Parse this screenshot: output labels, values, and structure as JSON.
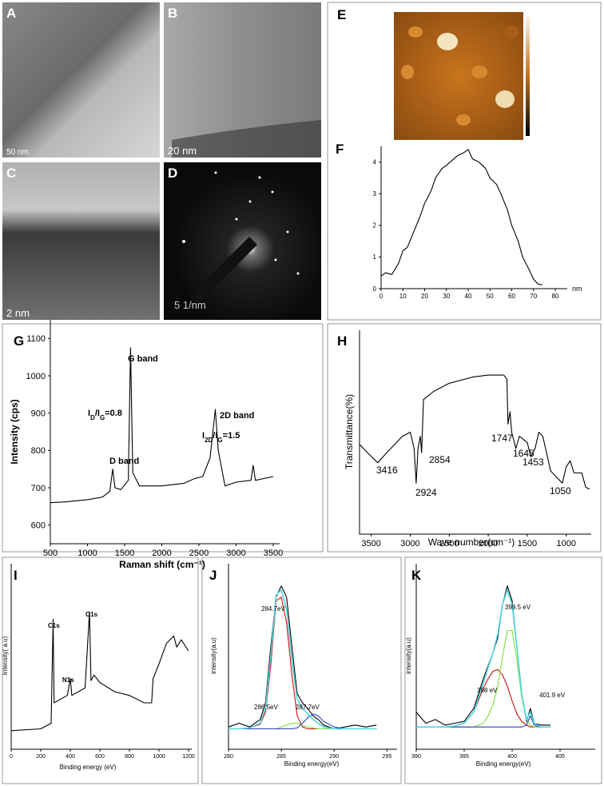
{
  "images": [
    {
      "label": "A",
      "scale": "50 nm"
    },
    {
      "label": "B",
      "scale": "20 nm"
    },
    {
      "label": "C",
      "scale": "2 nm"
    },
    {
      "label": "D",
      "scale": "5 1/nm"
    },
    {
      "label": "E"
    }
  ],
  "chart_data": [
    {
      "type": "line",
      "label": "F",
      "xlabel": "nm",
      "x": [
        0,
        2,
        5,
        8,
        10,
        12,
        15,
        18,
        20,
        23,
        25,
        28,
        30,
        35,
        38,
        40,
        42,
        45,
        48,
        50,
        53,
        55,
        58,
        60,
        63,
        65,
        68,
        70,
        72,
        74
      ],
      "series": [
        {
          "color": "#000000",
          "values": [
            0.4,
            0.5,
            0.45,
            0.8,
            1.2,
            1.3,
            1.8,
            2.3,
            2.7,
            3.1,
            3.5,
            3.8,
            3.9,
            4.2,
            4.3,
            4.4,
            4.1,
            4.0,
            3.8,
            3.5,
            3.3,
            3.0,
            2.5,
            2.0,
            1.5,
            1.0,
            0.6,
            0.3,
            0.15,
            0.12
          ]
        }
      ],
      "xlim": [
        0,
        80
      ],
      "xticks": [
        0,
        10,
        20,
        30,
        40,
        50,
        60,
        70,
        80
      ],
      "ylim": [
        0,
        4.5
      ],
      "yticks": [
        0,
        1,
        2,
        3,
        4
      ]
    },
    {
      "type": "line",
      "label": "G",
      "xlabel": "Raman shift (cm⁻¹)",
      "ylabel": "Intensity (cps)",
      "x": [
        500,
        700,
        1000,
        1200,
        1300,
        1340,
        1370,
        1450,
        1550,
        1580,
        1610,
        1700,
        2000,
        2300,
        2450,
        2550,
        2650,
        2720,
        2760,
        2850,
        3000,
        3200,
        3230,
        3260,
        3500
      ],
      "series": [
        {
          "color": "#000000",
          "values": [
            660,
            662,
            668,
            675,
            690,
            750,
            700,
            695,
            720,
            1075,
            740,
            705,
            705,
            712,
            725,
            730,
            780,
            910,
            800,
            705,
            715,
            720,
            760,
            720,
            730
          ]
        }
      ],
      "xlim": [
        500,
        3500
      ],
      "xticks": [
        500,
        1000,
        1500,
        2000,
        2500,
        3000,
        3500
      ],
      "ylim": [
        550,
        1150
      ],
      "yticks": [
        600,
        700,
        800,
        900,
        1000,
        1100
      ],
      "annotations": [
        {
          "text": [
            "D band"
          ]
        },
        {
          "text": [
            "I",
            "D",
            "/I",
            "G",
            "=0.8"
          ]
        },
        {
          "text": [
            "G band"
          ]
        },
        {
          "text": [
            "2D band"
          ]
        },
        {
          "text": [
            "I",
            "2D",
            "/I",
            "G",
            "=1.5"
          ]
        }
      ]
    },
    {
      "type": "line",
      "label": "H",
      "xlabel": "Wave number(cm⁻¹)",
      "ylabel": "Transmittance(%)",
      "x": [
        3650,
        3550,
        3416,
        3300,
        3100,
        3000,
        2950,
        2924,
        2900,
        2870,
        2854,
        2830,
        2700,
        2500,
        2200,
        2000,
        1800,
        1760,
        1747,
        1720,
        1700,
        1645,
        1600,
        1500,
        1453,
        1400,
        1350,
        1300,
        1200,
        1100,
        1050,
        1000,
        950,
        900,
        800,
        750,
        700
      ],
      "series": [
        {
          "color": "#000000",
          "values": [
            44,
            40,
            35,
            40,
            48,
            50,
            42,
            25,
            42,
            48,
            40,
            66,
            70,
            74,
            77,
            78,
            78,
            76,
            54,
            60,
            50,
            42,
            48,
            45,
            38,
            42,
            50,
            48,
            31,
            27,
            25,
            33,
            36,
            30,
            30,
            23,
            22
          ]
        }
      ],
      "xlim": [
        3650,
        700
      ],
      "xticks": [
        3500,
        3000,
        2500,
        2000,
        1500,
        1000
      ],
      "ylim": [
        0,
        100
      ],
      "annotations": [
        {
          "text": [
            "3416"
          ]
        },
        {
          "text": [
            "2924"
          ]
        },
        {
          "text": [
            "2854"
          ]
        },
        {
          "text": [
            "1747"
          ]
        },
        {
          "text": [
            "1645"
          ]
        },
        {
          "text": [
            "1453"
          ]
        },
        {
          "text": [
            "1050"
          ]
        }
      ]
    },
    {
      "type": "line",
      "label": "I",
      "xlabel": "Binding energy (eV)",
      "ylabel": "Intensity( a.u)",
      "x": [
        0,
        200,
        270,
        284,
        290,
        380,
        400,
        410,
        500,
        530,
        540,
        560,
        600,
        700,
        800,
        900,
        950,
        960,
        1000,
        1050,
        1100,
        1120,
        1150,
        1200
      ],
      "series": [
        {
          "color": "#000000",
          "values": [
            10,
            11,
            14,
            70,
            25,
            29,
            38,
            29,
            33,
            74,
            37,
            40,
            36,
            31,
            29,
            25,
            25,
            38,
            46,
            57,
            61,
            55,
            59,
            53
          ]
        }
      ],
      "xlim": [
        0,
        1200
      ],
      "xticks": [
        0,
        200,
        400,
        600,
        800,
        1000,
        1200
      ],
      "ylim": [
        0,
        100
      ],
      "annotations": [
        {
          "text": [
            "C1s"
          ]
        },
        {
          "text": [
            "N1s"
          ]
        },
        {
          "text": [
            "O1s"
          ]
        }
      ]
    },
    {
      "type": "line",
      "label": "J",
      "xlabel": "Binding energy(eV)",
      "ylabel": "intensity(a.u)",
      "x": [
        280,
        281,
        282,
        283,
        283.5,
        284,
        284.5,
        285,
        285.5,
        286,
        286.5,
        287,
        287.5,
        288,
        288.5,
        289,
        290,
        291,
        292,
        293,
        294
      ],
      "series": [
        {
          "color": "#000000",
          "values": [
            12,
            14,
            12,
            16,
            25,
            55,
            82,
            88,
            82,
            55,
            30,
            25,
            22,
            18,
            16,
            13,
            11,
            12,
            13,
            12,
            13
          ]
        },
        {
          "color": "#d01010",
          "values": [
            11,
            11,
            11.5,
            13.5,
            20,
            45,
            80,
            82,
            68,
            40,
            18,
            12,
            11,
            11,
            11,
            11,
            11,
            11,
            11,
            11,
            11
          ]
        },
        {
          "color": "#7ee03a",
          "values": [
            11,
            11,
            11,
            11,
            11,
            11,
            11,
            12,
            13,
            14,
            14,
            13,
            12,
            11.5,
            11,
            11,
            11,
            11,
            11,
            11,
            11
          ]
        },
        {
          "color": "#2a3fc0",
          "values": [
            11,
            11,
            11,
            11,
            11,
            11,
            11,
            11,
            11,
            11,
            11.5,
            14,
            17,
            19,
            18,
            15,
            12,
            11,
            11,
            11,
            11
          ]
        },
        {
          "color": "#4fd6e0",
          "values": [
            11,
            11,
            11.5,
            14,
            22,
            50,
            83,
            86,
            75,
            48,
            27,
            22,
            19,
            16,
            14,
            12,
            11,
            11,
            11,
            11,
            11
          ]
        }
      ],
      "xlim": [
        280,
        295.5
      ],
      "xticks": [
        280,
        285,
        290,
        295
      ],
      "ylim": [
        0,
        100
      ],
      "annotations": [
        {
          "text": [
            "284.7eV"
          ]
        },
        {
          "text": [
            "286.5eV"
          ]
        },
        {
          "text": [
            "287.7eV"
          ]
        }
      ]
    },
    {
      "type": "line",
      "label": "K",
      "xlabel": "Binding energy(eV)",
      "ylabel": "intensity(a.u)",
      "x": [
        390,
        391,
        392,
        393,
        394,
        395,
        396,
        397,
        397.5,
        398,
        398.5,
        399,
        399.5,
        400,
        400.5,
        401,
        401.5,
        401.9,
        402.3,
        403,
        404
      ],
      "series": [
        {
          "color": "#000000",
          "values": [
            20,
            14,
            16,
            13,
            14,
            15,
            22,
            38,
            45,
            52,
            60,
            78,
            88,
            80,
            55,
            30,
            15,
            22,
            14,
            13,
            13
          ]
        },
        {
          "color": "#c01010",
          "values": [
            12,
            12,
            12,
            12,
            12.5,
            14,
            20,
            33,
            38,
            42,
            43,
            40,
            34,
            26,
            19,
            15,
            13,
            12,
            12,
            12,
            12
          ]
        },
        {
          "color": "#7ee03a",
          "values": [
            12,
            12,
            12,
            12,
            12,
            12,
            12,
            14,
            18,
            24,
            34,
            50,
            64,
            64,
            48,
            28,
            16,
            13,
            12,
            12,
            12
          ]
        },
        {
          "color": "#2a3fc0",
          "values": [
            12,
            12,
            12,
            12,
            12,
            12,
            12,
            12,
            12,
            12,
            12,
            12,
            12,
            12,
            12,
            12,
            13,
            18,
            13,
            12,
            12
          ]
        },
        {
          "color": "#4fd6e0",
          "values": [
            12,
            12,
            12,
            12,
            12.5,
            14,
            20,
            36,
            44,
            52,
            62,
            78,
            86,
            78,
            55,
            30,
            16,
            20,
            14,
            12,
            12
          ]
        }
      ],
      "xlim": [
        390,
        408.5
      ],
      "xticks": [
        390,
        395,
        400,
        405
      ],
      "ylim": [
        0,
        100
      ],
      "annotations": [
        {
          "text": [
            "399.5 eV"
          ]
        },
        {
          "text": [
            "398 eV"
          ]
        },
        {
          "text": [
            "401.9 eV"
          ]
        }
      ]
    }
  ]
}
